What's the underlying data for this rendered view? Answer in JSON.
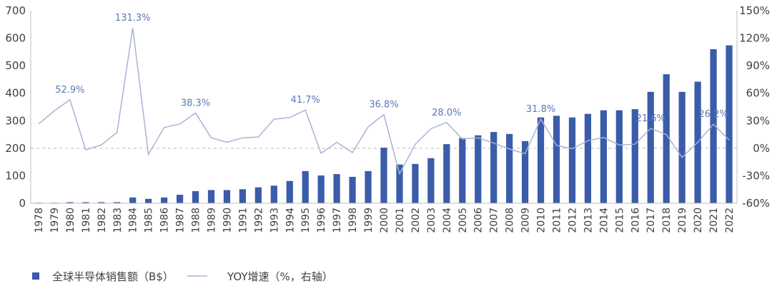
{
  "chart_data": {
    "type": "bar+line",
    "title": "",
    "categories": [
      "1978",
      "1979",
      "1980",
      "1981",
      "1982",
      "1983",
      "1984",
      "1985",
      "1986",
      "1987",
      "1988",
      "1989",
      "1990",
      "1991",
      "1992",
      "1993",
      "1994",
      "1995",
      "1996",
      "1997",
      "1998",
      "1999",
      "2000",
      "2001",
      "2002",
      "2003",
      "2004",
      "2005",
      "2006",
      "2007",
      "2008",
      "2009",
      "2010",
      "2011",
      "2012",
      "2013",
      "2014",
      "2015",
      "2016",
      "2017",
      "2018",
      "2019",
      "2020",
      "2021",
      "2022"
    ],
    "series": [
      {
        "name": "全球半导体销售额（B$）",
        "type": "bar",
        "axis": "left",
        "values": [
          2,
          2,
          4,
          4,
          4,
          4,
          21,
          16,
          21,
          31,
          44,
          48,
          48,
          51,
          58,
          64,
          81,
          117,
          101,
          106,
          96,
          117,
          202,
          141,
          143,
          164,
          215,
          237,
          247,
          259,
          252,
          226,
          312,
          318,
          312,
          325,
          338,
          338,
          342,
          405,
          469,
          405,
          442,
          560,
          574
        ]
      },
      {
        "name": "YOY增速（%，右轴）",
        "type": "line",
        "axis": "right",
        "values": [
          26.5,
          40.8,
          52.9,
          -1.6,
          3.6,
          17.4,
          131.3,
          -6.8,
          22.6,
          26.5,
          38.3,
          11.4,
          6.5,
          11.4,
          12.2,
          31.7,
          33.5,
          41.7,
          -5.5,
          6.5,
          -4.7,
          23.4,
          36.8,
          -28,
          4.4,
          21.3,
          28.0,
          10.1,
          11.4,
          5.7,
          -0.8,
          -6,
          31.8,
          3.1,
          -0.5,
          8.3,
          11.7,
          3.6,
          4.4,
          21.6,
          15,
          -10,
          6.5,
          26.2,
          9
        ]
      }
    ],
    "data_labels": [
      {
        "category": "1980",
        "text": "52.9%"
      },
      {
        "category": "1984",
        "text": "131.3%"
      },
      {
        "category": "1988",
        "text": "38.3%"
      },
      {
        "category": "1995",
        "text": "41.7%"
      },
      {
        "category": "2000",
        "text": "36.8%"
      },
      {
        "category": "2004",
        "text": "28.0%"
      },
      {
        "category": "2010",
        "text": "31.8%"
      },
      {
        "category": "2017",
        "text": "21.6%"
      },
      {
        "category": "2021",
        "text": "26.2%"
      }
    ],
    "left_axis": {
      "ylim": [
        0,
        700
      ],
      "ticks": [
        "0",
        "100",
        "200",
        "300",
        "400",
        "500",
        "600",
        "700"
      ]
    },
    "right_axis": {
      "ylim": [
        -60,
        150
      ],
      "ticks": [
        "-60%",
        "-30%",
        "0%",
        "30%",
        "60%",
        "90%",
        "120%",
        "150%"
      ]
    },
    "reference_line": {
      "axis": "right",
      "value": 0,
      "style": "dashed"
    },
    "legend": {
      "position": "bottom-left",
      "items": [
        "全球半导体销售额（B$）",
        "YOY增速（%，右轴）"
      ]
    },
    "grid": false
  },
  "colors": {
    "bar": "#3a5ca9",
    "line": "#a9b3d5",
    "label": "#5b78b6",
    "axis": "#bfbfbf"
  }
}
